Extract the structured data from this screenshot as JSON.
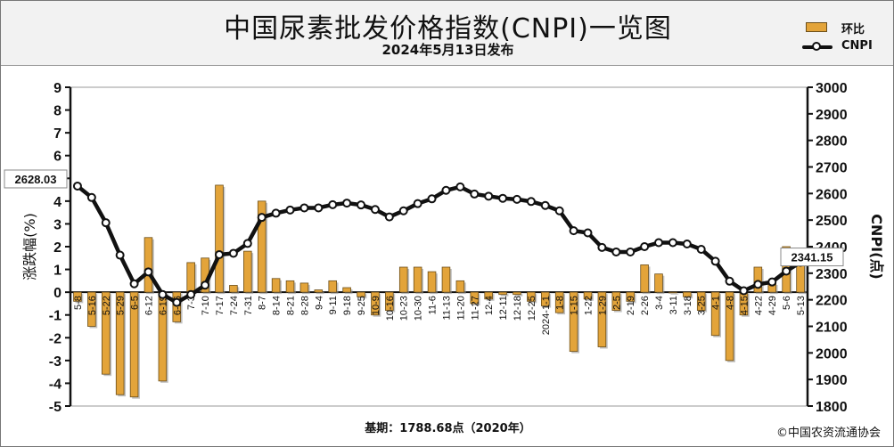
{
  "header": {
    "title": "中国尿素批发价格指数(CNPI)一览图",
    "subtitle": "2024年5月13日发布"
  },
  "legend": {
    "bar_label": "环比",
    "line_label": "CNPI"
  },
  "footer": {
    "base_text": "基期：1788.68点（2020年）",
    "copyright": "©中国农资流通协会"
  },
  "colors": {
    "bar_fill": "#e3a43a",
    "bar_edge": "#6b4e1a",
    "line": "#111111",
    "header_bg": "#f2f2f2"
  },
  "chart_data": {
    "type": "bar+line",
    "title": "中国尿素批发价格指数(CNPI)一览图",
    "ylabel_left": "涨跌幅(%)",
    "ylabel_right": "CNPI(点)",
    "ylim_left": [
      -5,
      9
    ],
    "ylim_right": [
      1800,
      3000
    ],
    "left_ticks": [
      -5,
      -4,
      -3,
      -2,
      -1,
      0,
      1,
      2,
      3,
      4,
      5,
      6,
      7,
      8,
      9
    ],
    "right_ticks": [
      1800,
      1900,
      2000,
      2100,
      2200,
      2300,
      2400,
      2500,
      2600,
      2700,
      2800,
      2900,
      3000
    ],
    "grid": false,
    "legend_position": "top-right",
    "categories": [
      "5-8",
      "5-16",
      "5-22",
      "5-29",
      "6-5",
      "6-12",
      "6-19",
      "6-26",
      "7-3",
      "7-10",
      "7-17",
      "7-24",
      "7-31",
      "8-7",
      "8-14",
      "8-21",
      "8-28",
      "9-4",
      "9-11",
      "9-18",
      "9-25",
      "10-9",
      "10-16",
      "10-23",
      "10-30",
      "11-6",
      "11-13",
      "11-20",
      "11-27",
      "12-4",
      "12-11",
      "12-18",
      "12-25",
      "2024-1-1",
      "1-8",
      "1-15",
      "1-22",
      "1-29",
      "2-5",
      "2-19",
      "2-26",
      "3-4",
      "3-11",
      "3-18",
      "3-25",
      "4-1",
      "4-8",
      "4-15",
      "4-22",
      "4-29",
      "5-6",
      "5-13"
    ],
    "series": [
      {
        "name": "环比",
        "kind": "bar",
        "axis": "left",
        "values": [
          -0.4,
          -1.5,
          -3.6,
          -4.5,
          -4.6,
          2.4,
          -3.9,
          -1.3,
          1.3,
          1.5,
          4.7,
          0.3,
          1.8,
          4.0,
          0.6,
          0.5,
          0.4,
          0.1,
          0.5,
          0.2,
          -0.2,
          -1.0,
          -0.8,
          1.1,
          1.1,
          0.9,
          1.1,
          0.5,
          -0.5,
          -0.3,
          -0.1,
          -0.1,
          -0.4,
          -0.6,
          -0.9,
          -2.6,
          -0.3,
          -2.4,
          -0.8,
          -0.4,
          1.2,
          0.8,
          0.0,
          -0.2,
          -0.8,
          -1.9,
          -3.0,
          -1.0,
          1.1,
          0.4,
          2.0,
          1.3
        ]
      },
      {
        "name": "CNPI",
        "kind": "line",
        "axis": "right",
        "values": [
          2628.03,
          2585,
          2490,
          2368,
          2260,
          2305,
          2220,
          2190,
          2220,
          2255,
          2370,
          2375,
          2412,
          2510,
          2526,
          2538,
          2546,
          2546,
          2558,
          2564,
          2557,
          2540,
          2512,
          2535,
          2562,
          2580,
          2612,
          2625,
          2598,
          2590,
          2582,
          2578,
          2570,
          2555,
          2535,
          2460,
          2452,
          2397,
          2380,
          2380,
          2400,
          2415,
          2415,
          2410,
          2390,
          2345,
          2270,
          2234,
          2258,
          2267,
          2308,
          2341.15
        ]
      }
    ],
    "callouts": [
      {
        "label": "2628.03",
        "index": 0,
        "side": "left"
      },
      {
        "label": "2341.15",
        "index": 51,
        "side": "right"
      }
    ]
  }
}
